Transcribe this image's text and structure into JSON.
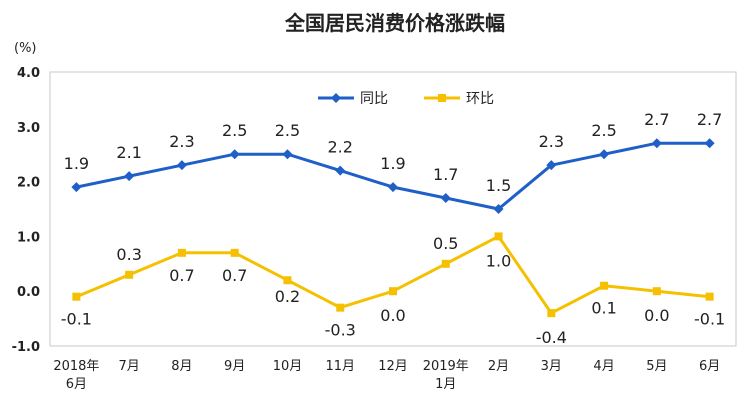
{
  "chart_data": {
    "type": "line",
    "title": "全国居民消费价格涨跌幅",
    "unit_label": "(%)",
    "categories": [
      [
        "2018年",
        "6月"
      ],
      [
        "7月"
      ],
      [
        "8月"
      ],
      [
        "9月"
      ],
      [
        "10月"
      ],
      [
        "11月"
      ],
      [
        "12月"
      ],
      [
        "2019年",
        "1月"
      ],
      [
        "2月"
      ],
      [
        "3月"
      ],
      [
        "4月"
      ],
      [
        "5月"
      ],
      [
        "6月"
      ]
    ],
    "ylim": [
      -1.0,
      4.0
    ],
    "yticks": [
      "4.0",
      "3.0",
      "2.0",
      "1.0",
      "0.0",
      "-1.0"
    ],
    "grid": false,
    "legend_position": "top-center",
    "series": [
      {
        "name": "同比",
        "color": "#1f5fc8",
        "values": [
          1.9,
          2.1,
          2.3,
          2.5,
          2.5,
          2.2,
          1.9,
          1.7,
          1.5,
          2.3,
          2.5,
          2.7,
          2.7
        ],
        "labels": [
          "1.9",
          "2.1",
          "2.3",
          "2.5",
          "2.5",
          "2.2",
          "1.9",
          "1.7",
          "1.5",
          "2.3",
          "2.5",
          "2.7",
          "2.7"
        ],
        "marker": "diamond"
      },
      {
        "name": "环比",
        "color": "#f5c000",
        "values": [
          -0.1,
          0.3,
          0.7,
          0.7,
          0.2,
          -0.3,
          0.0,
          0.5,
          1.0,
          -0.4,
          0.1,
          0.0,
          -0.1
        ],
        "labels": [
          "-0.1",
          "0.3",
          "0.7",
          "0.7",
          "0.2",
          "-0.3",
          "0.0",
          "0.5",
          "1.0",
          "-0.4",
          "0.1",
          "0.0",
          "-0.1"
        ],
        "marker": "square"
      }
    ]
  }
}
